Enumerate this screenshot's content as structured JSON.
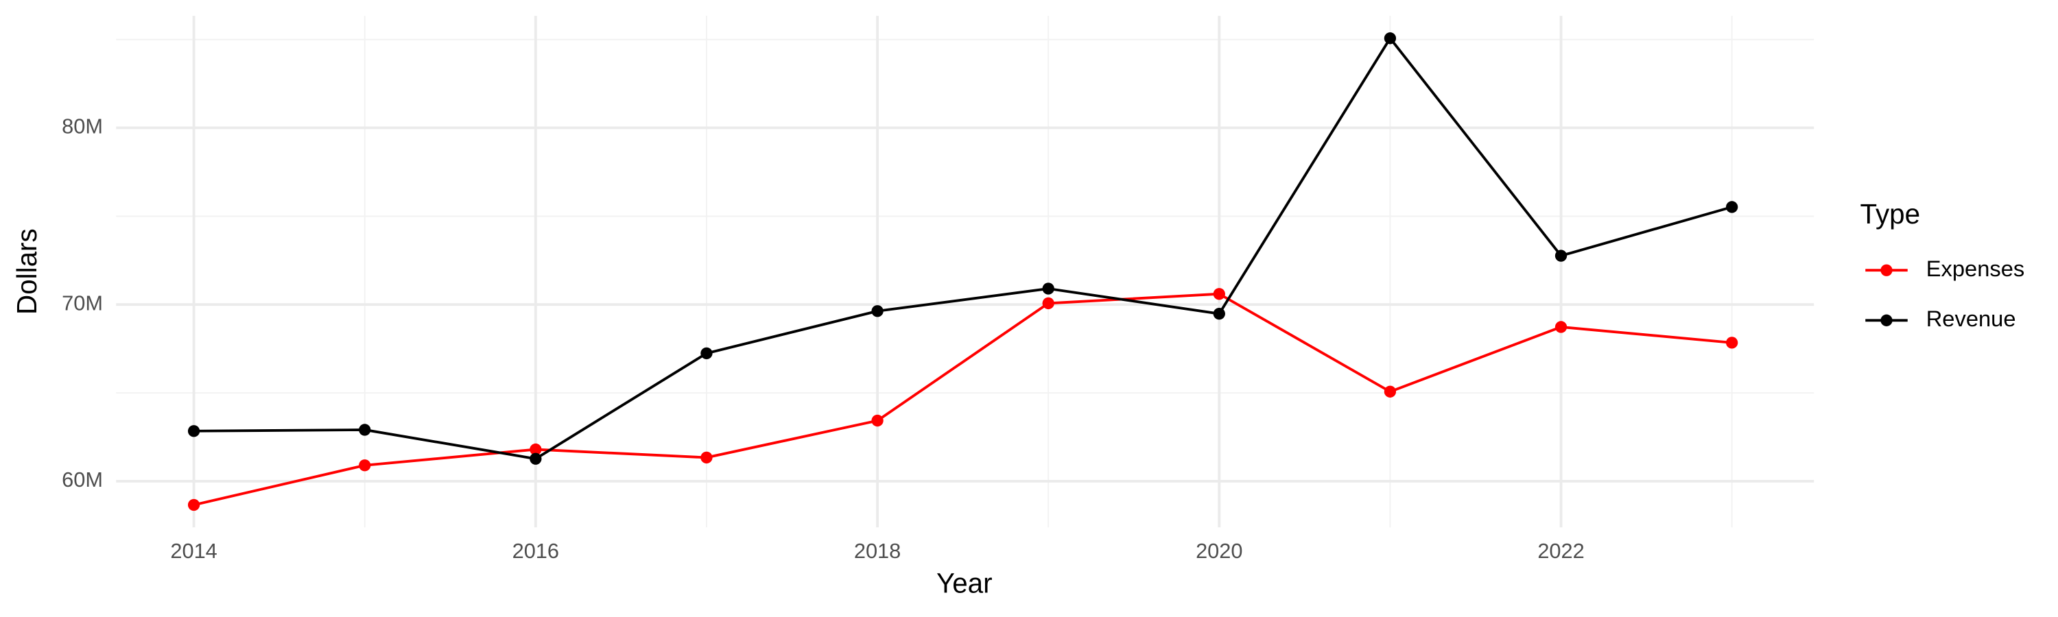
{
  "chart_data": {
    "type": "line",
    "x_label": "Year",
    "y_label": "Dollars",
    "legend_title": "Type",
    "x": [
      2014,
      2015,
      2016,
      2017,
      2018,
      2019,
      2020,
      2021,
      2022,
      2023
    ],
    "series": [
      {
        "name": "Expenses",
        "color": "#ff0000",
        "values": [
          58660000,
          60900000,
          61800000,
          61340000,
          63430000,
          70070000,
          70600000,
          65070000,
          68730000,
          67840000
        ]
      },
      {
        "name": "Revenue",
        "color": "#000000",
        "values": [
          62840000,
          62910000,
          61270000,
          67240000,
          69630000,
          70900000,
          69480000,
          85070000,
          72760000,
          75520000
        ]
      }
    ],
    "xlim": [
      2013.545,
      2023.48
    ],
    "ylim": [
      57390000,
      86340000
    ],
    "xticks": [
      2014,
      2016,
      2018,
      2020,
      2022
    ],
    "xminorticks": [
      2015,
      2017,
      2019,
      2021,
      2023
    ],
    "yticks": [
      {
        "value": 60000000,
        "label": "60M"
      },
      {
        "value": 70000000,
        "label": "70M"
      },
      {
        "value": 80000000,
        "label": "80M"
      }
    ],
    "yminorticks": [
      65000000,
      75000000,
      85000000
    ],
    "grid": true,
    "legend": "right"
  }
}
